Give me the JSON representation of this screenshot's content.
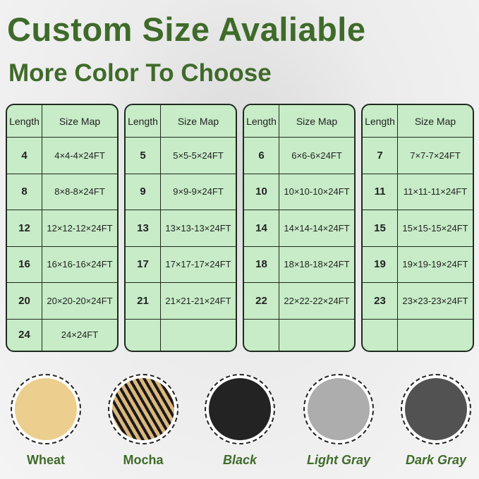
{
  "title": "Custom Size Avaliable",
  "subtitle": "More Color To Choose",
  "header": {
    "length": "Length",
    "size_map": "Size Map"
  },
  "tables": [
    {
      "rows": [
        {
          "length": "4",
          "size": "4×4-4×24FT"
        },
        {
          "length": "8",
          "size": "8×8-8×24FT"
        },
        {
          "length": "12",
          "size": "12×12-12×24FT"
        },
        {
          "length": "16",
          "size": "16×16-16×24FT"
        },
        {
          "length": "20",
          "size": "20×20-20×24FT"
        },
        {
          "length": "24",
          "size": "24×24FT"
        }
      ]
    },
    {
      "rows": [
        {
          "length": "5",
          "size": "5×5-5×24FT"
        },
        {
          "length": "9",
          "size": "9×9-9×24FT"
        },
        {
          "length": "13",
          "size": "13×13-13×24FT"
        },
        {
          "length": "17",
          "size": "17×17-17×24FT"
        },
        {
          "length": "21",
          "size": "21×21-21×24FT"
        },
        {
          "length": "",
          "size": ""
        }
      ]
    },
    {
      "rows": [
        {
          "length": "6",
          "size": "6×6-6×24FT"
        },
        {
          "length": "10",
          "size": "10×10-10×24FT"
        },
        {
          "length": "14",
          "size": "14×14-14×24FT"
        },
        {
          "length": "18",
          "size": "18×18-18×24FT"
        },
        {
          "length": "22",
          "size": "22×22-22×24FT"
        },
        {
          "length": "",
          "size": ""
        }
      ]
    },
    {
      "rows": [
        {
          "length": "7",
          "size": "7×7-7×24FT"
        },
        {
          "length": "11",
          "size": "11×11-11×24FT"
        },
        {
          "length": "15",
          "size": "15×15-15×24FT"
        },
        {
          "length": "19",
          "size": "19×19-19×24FT"
        },
        {
          "length": "23",
          "size": "23×23-23×24FT"
        },
        {
          "length": "",
          "size": ""
        }
      ]
    }
  ],
  "colors": [
    {
      "name": "Wheat",
      "color": "#e2c88e",
      "italic": false
    },
    {
      "name": "Mocha",
      "color": "#a88a5a",
      "italic": false
    },
    {
      "name": "Black",
      "color": "#2b2b2b",
      "italic": true
    },
    {
      "name": "Light Gray",
      "color": "#a9a9a9",
      "italic": true
    },
    {
      "name": "Dark Gray",
      "color": "#565656",
      "italic": true
    }
  ]
}
